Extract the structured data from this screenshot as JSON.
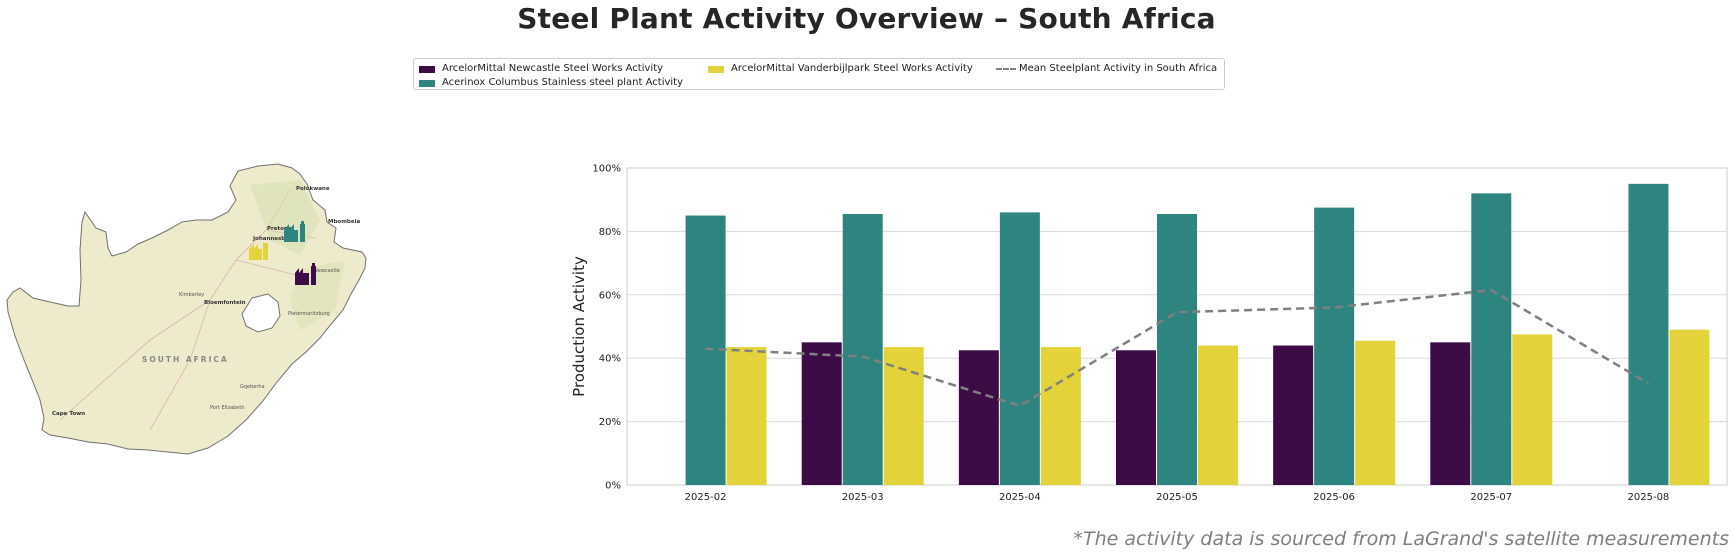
{
  "title": "Steel Plant Activity Overview – South Africa",
  "footnote": "*The activity data is sourced from LaGrand's satellite measurements",
  "map": {
    "country_label": "SOUTH AFRICA",
    "cities": [
      "Polokwane",
      "Pretoria",
      "Johannesburg",
      "Mbombela",
      "Bloemfontein",
      "Kimberley",
      "Newcastle",
      "Pietermaritzburg",
      "Cape Town",
      "Gqeberha",
      "Port Elizabeth"
    ],
    "plant_icons": [
      {
        "name": "Acerinox Columbus Stainless steel plant",
        "color": "#2e8580"
      },
      {
        "name": "ArcelorMittal Vanderbijlpark Steel Works",
        "color": "#e3d23a"
      },
      {
        "name": "ArcelorMittal Newcastle Steel Works",
        "color": "#3d0c47"
      }
    ]
  },
  "legend": [
    {
      "label": "ArcelorMittal Newcastle Steel Works Activity",
      "color": "#3d0c47",
      "kind": "bar"
    },
    {
      "label": "Acerinox Columbus Stainless steel plant Activity",
      "color": "#2e8580",
      "kind": "bar"
    },
    {
      "label": "ArcelorMittal Vanderbijlpark Steel Works Activity",
      "color": "#e3d23a",
      "kind": "bar"
    },
    {
      "label": "Mean Steelplant Activity in South Africa",
      "color": "#808080",
      "kind": "line"
    }
  ],
  "chart_data": {
    "type": "bar",
    "categories": [
      "2025-02",
      "2025-03",
      "2025-04",
      "2025-05",
      "2025-06",
      "2025-07",
      "2025-08"
    ],
    "ylabel": "Production Activity",
    "xlabel": "",
    "ylim": [
      0,
      100
    ],
    "yticks": [
      "0%",
      "20%",
      "40%",
      "60%",
      "80%",
      "100%"
    ],
    "grid": true,
    "legend_position": "top-center",
    "series": [
      {
        "name": "ArcelorMittal Newcastle Steel Works Activity",
        "color": "#3d0c47",
        "values": [
          null,
          45,
          42.5,
          42.5,
          44,
          45,
          null
        ]
      },
      {
        "name": "Acerinox Columbus Stainless steel plant Activity",
        "color": "#2e8580",
        "values": [
          85,
          85.5,
          86,
          85.5,
          87.5,
          92,
          95
        ]
      },
      {
        "name": "ArcelorMittal Vanderbijlpark Steel Works Activity",
        "color": "#e3d23a",
        "values": [
          43.5,
          43.5,
          43.5,
          44,
          45.5,
          47.5,
          49
        ]
      }
    ],
    "mean_line": {
      "name": "Mean Steelplant Activity in South Africa",
      "color": "#808080",
      "values": [
        43,
        40.5,
        25,
        54.5,
        56,
        61.5,
        32
      ]
    }
  }
}
